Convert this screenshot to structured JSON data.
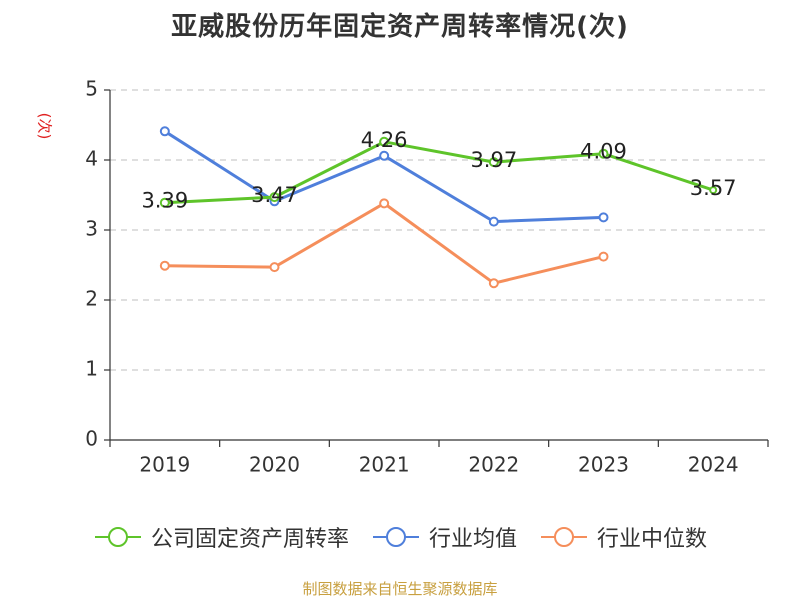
{
  "title": "亚威股份历年固定资产周转率情况(次)",
  "source_note": "制图数据来自恒生聚源数据库",
  "colors": {
    "company": "#5ec42a",
    "industry_avg": "#4f7fdb",
    "industry_median": "#f58e5b",
    "ylabel": "#e02020",
    "grid": "#cccccc",
    "axis": "#333333"
  },
  "chart_data": {
    "type": "line",
    "title": "亚威股份历年固定资产周转率情况(次)",
    "xlabel": "",
    "ylabel": "(次)",
    "ylim": [
      0,
      5
    ],
    "yticks": [
      0,
      1,
      2,
      3,
      4,
      5
    ],
    "grid": true,
    "legend_position": "bottom",
    "categories": [
      "2019",
      "2020",
      "2021",
      "2022",
      "2023",
      "2024"
    ],
    "series": [
      {
        "name": "公司固定资产周转率",
        "color": "#5ec42a",
        "values": [
          3.39,
          3.47,
          4.26,
          3.97,
          4.09,
          3.57
        ],
        "labels": [
          "3.39",
          "3.47",
          "4.26",
          "3.97",
          "4.09",
          "3.57"
        ]
      },
      {
        "name": "行业均值",
        "color": "#4f7fdb",
        "values": [
          4.41,
          3.41,
          4.06,
          3.12,
          3.18,
          null
        ]
      },
      {
        "name": "行业中位数",
        "color": "#f58e5b",
        "values": [
          2.49,
          2.47,
          3.38,
          2.24,
          2.62,
          null
        ]
      }
    ]
  }
}
